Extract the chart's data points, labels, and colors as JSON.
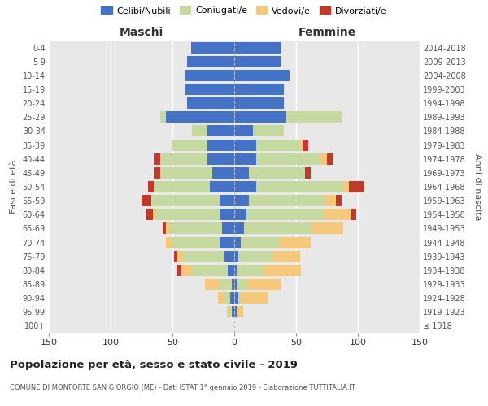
{
  "age_groups": [
    "100+",
    "95-99",
    "90-94",
    "85-89",
    "80-84",
    "75-79",
    "70-74",
    "65-69",
    "60-64",
    "55-59",
    "50-54",
    "45-49",
    "40-44",
    "35-39",
    "30-34",
    "25-29",
    "20-24",
    "15-19",
    "10-14",
    "5-9",
    "0-4"
  ],
  "birth_years": [
    "≤ 1918",
    "1919-1923",
    "1924-1928",
    "1929-1933",
    "1934-1938",
    "1939-1943",
    "1944-1948",
    "1949-1953",
    "1954-1958",
    "1959-1963",
    "1964-1968",
    "1969-1973",
    "1974-1978",
    "1979-1983",
    "1984-1988",
    "1989-1993",
    "1994-1998",
    "1999-2003",
    "2004-2008",
    "2009-2013",
    "2014-2018"
  ],
  "maschi": {
    "celibe": [
      0,
      2,
      3,
      2,
      5,
      8,
      12,
      10,
      12,
      12,
      20,
      18,
      22,
      22,
      22,
      55,
      38,
      40,
      40,
      38,
      35
    ],
    "coniugato": [
      0,
      2,
      5,
      10,
      30,
      33,
      38,
      42,
      52,
      55,
      45,
      42,
      38,
      28,
      12,
      5,
      0,
      0,
      0,
      0,
      0
    ],
    "vedovo": [
      0,
      2,
      5,
      12,
      8,
      5,
      5,
      3,
      2,
      0,
      0,
      0,
      0,
      0,
      0,
      0,
      0,
      0,
      0,
      0,
      0
    ],
    "divorziato": [
      0,
      0,
      0,
      0,
      3,
      3,
      0,
      3,
      5,
      8,
      5,
      5,
      5,
      0,
      0,
      0,
      0,
      0,
      0,
      0,
      0
    ]
  },
  "femmine": {
    "nubile": [
      0,
      2,
      3,
      2,
      2,
      3,
      5,
      8,
      10,
      12,
      18,
      12,
      18,
      18,
      15,
      42,
      40,
      40,
      45,
      38,
      38
    ],
    "coniugata": [
      0,
      0,
      2,
      8,
      22,
      28,
      32,
      55,
      62,
      62,
      70,
      45,
      52,
      35,
      25,
      45,
      0,
      0,
      0,
      0,
      0
    ],
    "vedova": [
      0,
      5,
      22,
      28,
      30,
      22,
      25,
      25,
      22,
      8,
      5,
      0,
      5,
      2,
      0,
      0,
      0,
      0,
      0,
      0,
      0
    ],
    "divorziata": [
      0,
      0,
      0,
      0,
      0,
      0,
      0,
      0,
      5,
      5,
      12,
      5,
      5,
      5,
      0,
      0,
      0,
      0,
      0,
      0,
      0
    ]
  },
  "colors": {
    "celibe": "#4472C4",
    "coniugato": "#C5D9A0",
    "vedovo": "#F4C97C",
    "divorziato": "#C0392B"
  },
  "title": "Popolazione per età, sesso e stato civile - 2019",
  "subtitle": "COMUNE DI MONFORTE SAN GIORGIO (ME) - Dati ISTAT 1° gennaio 2019 - Elaborazione TUTTITALIA.IT",
  "xlabel_maschi": "Maschi",
  "xlabel_femmine": "Femmine",
  "ylabel_left": "Fasce di età",
  "ylabel_right": "Anni di nascita",
  "xlim": 150,
  "legend_labels": [
    "Celibi/Nubili",
    "Coniugati/e",
    "Vedovi/e",
    "Divorziati/e"
  ]
}
